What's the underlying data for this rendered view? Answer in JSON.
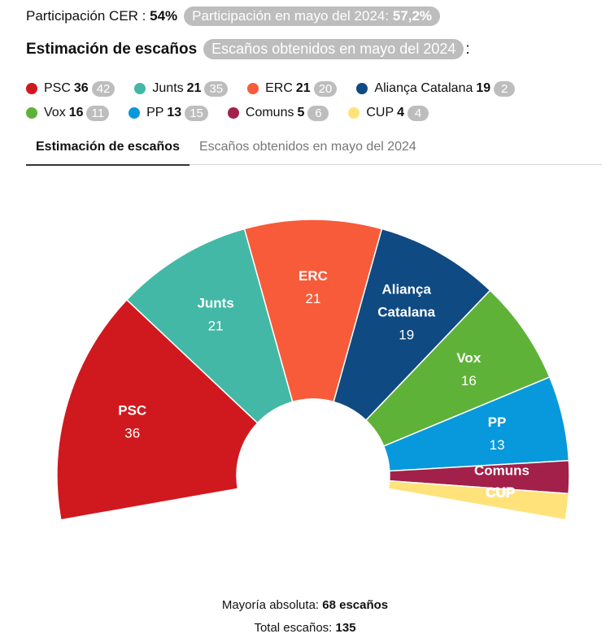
{
  "header": {
    "participation_label": "Participación CER :",
    "participation_value": "54%",
    "participation_prev_label": "Participación en mayo del 2024:",
    "participation_prev_value": "57,2%",
    "estimation_label": "Estimación de escaños",
    "estimation_prev_label": "Escaños obtenidos en mayo del 2024",
    "estimation_colon": ":"
  },
  "tabs": [
    {
      "label": "Estimación de escaños"
    },
    {
      "label": "Escaños obtenidos en mayo del 2024"
    }
  ],
  "chart_data": {
    "type": "pie",
    "subtype": "parliament-semicircle",
    "total_seats": 135,
    "series": [
      {
        "name": "PSC",
        "seats": 36,
        "prev": 42,
        "color": "#d0191e"
      },
      {
        "name": "Junts",
        "seats": 21,
        "prev": 35,
        "color": "#43b8a6"
      },
      {
        "name": "ERC",
        "seats": 21,
        "prev": 20,
        "color": "#f75b3a"
      },
      {
        "name": "Aliança Catalana",
        "seats": 19,
        "prev": 2,
        "color": "#0f4a82"
      },
      {
        "name": "Vox",
        "seats": 16,
        "prev": 11,
        "color": "#5fb238"
      },
      {
        "name": "PP",
        "seats": 13,
        "prev": 15,
        "color": "#0799db"
      },
      {
        "name": "Comuns",
        "seats": 5,
        "prev": 6,
        "color": "#a22049"
      },
      {
        "name": "CUP",
        "seats": 4,
        "prev": 4,
        "color": "#ffe27a"
      }
    ],
    "chart_labels": {
      "Aliança Catalana": [
        "Aliança",
        "Catalana"
      ]
    }
  },
  "footer": {
    "majority_label": "Mayoría absoluta:",
    "majority_value": "68 escaños",
    "total_label": "Total escaños:",
    "total_value": "135"
  }
}
